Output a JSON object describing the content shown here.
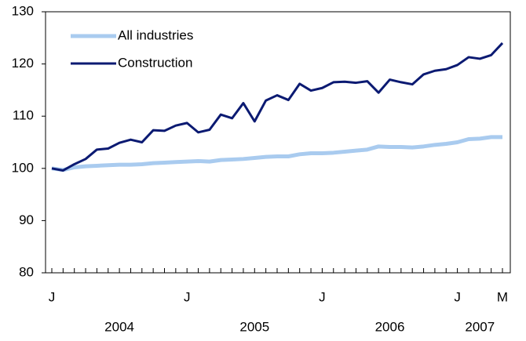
{
  "chart_data": {
    "type": "line",
    "categories": [
      "J",
      null,
      null,
      null,
      null,
      null,
      null,
      null,
      null,
      null,
      null,
      null,
      "J",
      null,
      null,
      null,
      null,
      null,
      null,
      null,
      null,
      null,
      null,
      null,
      "J",
      null,
      null,
      null,
      null,
      null,
      null,
      null,
      null,
      null,
      null,
      null,
      "J",
      null,
      null,
      null,
      "M"
    ],
    "year_labels": [
      "2004",
      "2005",
      "2006",
      "2007"
    ],
    "series": [
      {
        "name": "All industries",
        "color": "#a9cbef",
        "values": [
          100.0,
          99.7,
          100.2,
          100.4,
          100.5,
          100.6,
          100.7,
          100.7,
          100.8,
          101.0,
          101.1,
          101.2,
          101.3,
          101.4,
          101.3,
          101.6,
          101.7,
          101.8,
          102.0,
          102.2,
          102.3,
          102.3,
          102.7,
          102.9,
          102.9,
          103.0,
          103.2,
          103.4,
          103.6,
          104.2,
          104.1,
          104.1,
          104.0,
          104.2,
          104.5,
          104.7,
          105.0,
          105.6,
          105.7,
          106.0,
          106.0
        ]
      },
      {
        "name": "Construction",
        "color": "#0b1a72",
        "values": [
          100.0,
          99.6,
          100.8,
          101.8,
          103.6,
          103.8,
          104.9,
          105.5,
          105.0,
          107.3,
          107.2,
          108.2,
          108.7,
          106.9,
          107.4,
          110.3,
          109.6,
          112.5,
          109.0,
          113.0,
          114.0,
          113.1,
          116.2,
          114.9,
          115.4,
          116.5,
          116.6,
          116.4,
          116.7,
          114.5,
          117.0,
          116.5,
          116.1,
          118.0,
          118.7,
          119.0,
          119.8,
          121.3,
          121.0,
          121.7,
          124.0
        ]
      }
    ],
    "ylim": [
      80,
      130
    ],
    "yticks": [
      80,
      90,
      100,
      110,
      120,
      130
    ],
    "grid": false,
    "legend": "top-left"
  }
}
